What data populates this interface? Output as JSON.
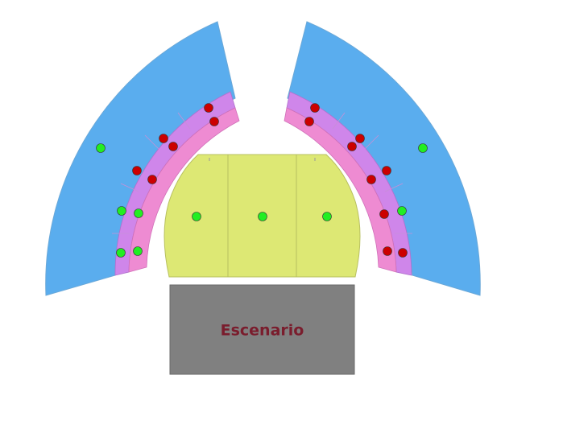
{
  "stage": {
    "label": "Escenario"
  },
  "colors": {
    "outer_section": "#5aadee",
    "row_outer": "#cf86ea",
    "row_inner": "#ee8bd2",
    "pit": "#dde874",
    "stage_fill": "#808080",
    "stage_text": "#7a1d2d",
    "seat_available": "#22ee22",
    "seat_sold": "#cc0000",
    "seat_border": "#333333"
  },
  "legend": {
    "available": "seat-available",
    "sold": "seat-sold"
  }
}
